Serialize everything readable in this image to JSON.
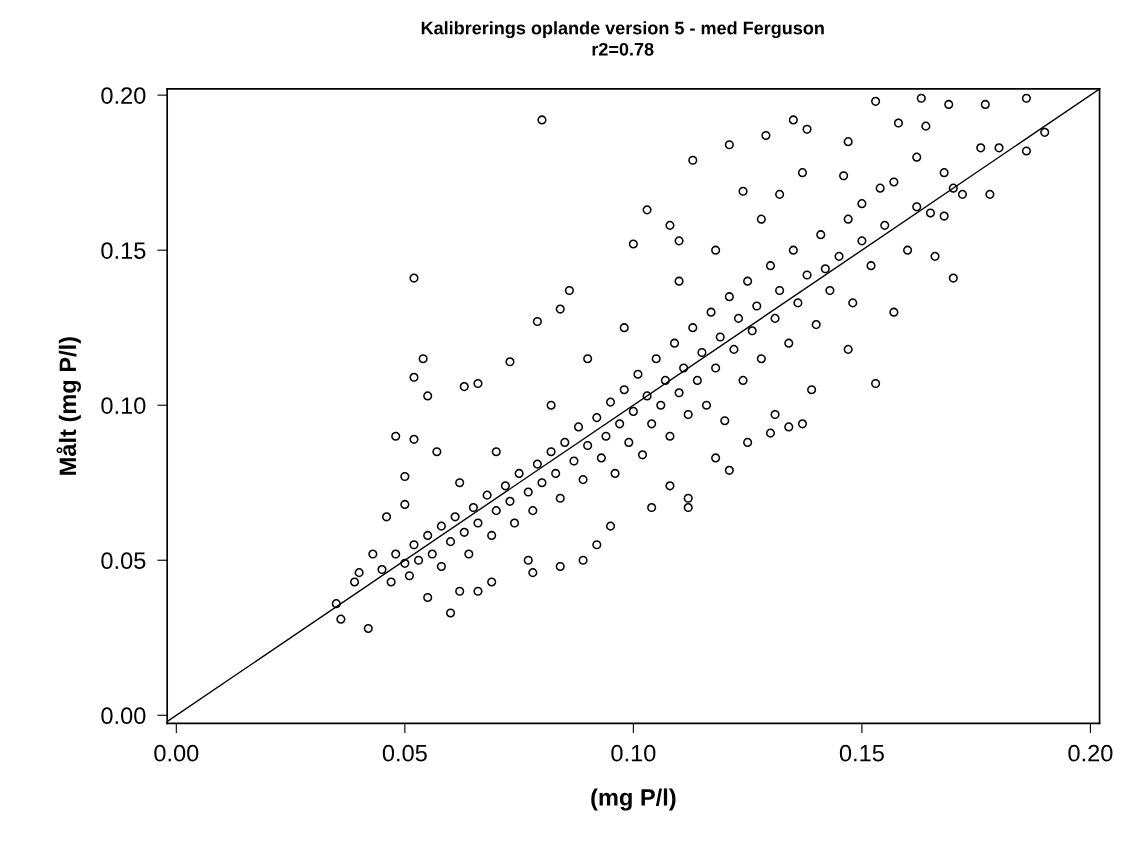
{
  "chart_data": {
    "type": "scatter",
    "title": "Kalibrerings oplande version 5 - med Ferguson",
    "subtitle": "r2=0.78",
    "xlabel": "(mg P/l)",
    "ylabel": "Målt (mg P/l)",
    "xlim": [
      -0.002,
      0.202
    ],
    "ylim": [
      -0.0026,
      0.202
    ],
    "xticks": [
      {
        "value": 0,
        "label": "0.00"
      },
      {
        "value": 0.05,
        "label": "0.05"
      },
      {
        "value": 0.1,
        "label": "0.10"
      },
      {
        "value": 0.15,
        "label": "0.15"
      },
      {
        "value": 0.2,
        "label": "0.20"
      }
    ],
    "yticks": [
      {
        "value": 0,
        "label": "0.00"
      },
      {
        "value": 0.05,
        "label": "0.05"
      },
      {
        "value": 0.1,
        "label": "0.10"
      },
      {
        "value": 0.15,
        "label": "0.15"
      },
      {
        "value": 0.2,
        "label": "0.20"
      }
    ],
    "grid": false,
    "legend": false,
    "series": [
      {
        "color": "#000000",
        "marker": "circle",
        "x": [
          0.08,
          0.052,
          0.054,
          0.052,
          0.055,
          0.063,
          0.066,
          0.073,
          0.086,
          0.079,
          0.1,
          0.084,
          0.153,
          0.163,
          0.169,
          0.177,
          0.186,
          0.19,
          0.186,
          0.18,
          0.178,
          0.17,
          0.166,
          0.153,
          0.139,
          0.147,
          0.157,
          0.113,
          0.121,
          0.135,
          0.129,
          0.103,
          0.108,
          0.11,
          0.137,
          0.158,
          0.164,
          0.176,
          0.168,
          0.172,
          0.162,
          0.168,
          0.142,
          0.15,
          0.138,
          0.147,
          0.146,
          0.154,
          0.124,
          0.132,
          0.137,
          0.134,
          0.13,
          0.131,
          0.121,
          0.118,
          0.112,
          0.112,
          0.104,
          0.108,
          0.125,
          0.042,
          0.036,
          0.035,
          0.04,
          0.039,
          0.043,
          0.06,
          0.048,
          0.052,
          0.05,
          0.046,
          0.05,
          0.057,
          0.078,
          0.084,
          0.089,
          0.092,
          0.095,
          0.069,
          0.066,
          0.055,
          0.062,
          0.077,
          0.045,
          0.047,
          0.048,
          0.05,
          0.051,
          0.052,
          0.053,
          0.055,
          0.056,
          0.058,
          0.058,
          0.06,
          0.061,
          0.063,
          0.064,
          0.065,
          0.066,
          0.068,
          0.069,
          0.07,
          0.072,
          0.073,
          0.074,
          0.075,
          0.077,
          0.078,
          0.079,
          0.08,
          0.082,
          0.083,
          0.084,
          0.085,
          0.087,
          0.088,
          0.089,
          0.09,
          0.092,
          0.093,
          0.094,
          0.095,
          0.096,
          0.097,
          0.098,
          0.099,
          0.1,
          0.101,
          0.102,
          0.103,
          0.104,
          0.105,
          0.106,
          0.107,
          0.108,
          0.109,
          0.11,
          0.111,
          0.112,
          0.113,
          0.114,
          0.115,
          0.116,
          0.117,
          0.118,
          0.119,
          0.12,
          0.121,
          0.122,
          0.123,
          0.124,
          0.125,
          0.126,
          0.127,
          0.128,
          0.13,
          0.131,
          0.132,
          0.134,
          0.135,
          0.136,
          0.138,
          0.14,
          0.141,
          0.143,
          0.145,
          0.147,
          0.148,
          0.15,
          0.152,
          0.155,
          0.157,
          0.16,
          0.162,
          0.165,
          0.17,
          0.128,
          0.118,
          0.11,
          0.098,
          0.09,
          0.082,
          0.07,
          0.062
        ],
        "values": [
          0.192,
          0.141,
          0.115,
          0.109,
          0.103,
          0.106,
          0.107,
          0.114,
          0.137,
          0.127,
          0.152,
          0.131,
          0.198,
          0.199,
          0.197,
          0.197,
          0.199,
          0.188,
          0.182,
          0.183,
          0.168,
          0.141,
          0.148,
          0.107,
          0.105,
          0.118,
          0.13,
          0.179,
          0.184,
          0.192,
          0.187,
          0.163,
          0.158,
          0.153,
          0.175,
          0.191,
          0.19,
          0.183,
          0.175,
          0.168,
          0.164,
          0.161,
          0.144,
          0.153,
          0.189,
          0.185,
          0.174,
          0.17,
          0.169,
          0.168,
          0.094,
          0.093,
          0.091,
          0.097,
          0.079,
          0.083,
          0.067,
          0.07,
          0.067,
          0.074,
          0.088,
          0.028,
          0.031,
          0.036,
          0.046,
          0.043,
          0.052,
          0.033,
          0.09,
          0.089,
          0.077,
          0.064,
          0.068,
          0.085,
          0.046,
          0.048,
          0.05,
          0.055,
          0.061,
          0.043,
          0.04,
          0.038,
          0.04,
          0.05,
          0.047,
          0.043,
          0.052,
          0.049,
          0.045,
          0.055,
          0.05,
          0.058,
          0.052,
          0.061,
          0.048,
          0.056,
          0.064,
          0.059,
          0.052,
          0.067,
          0.062,
          0.071,
          0.058,
          0.066,
          0.074,
          0.069,
          0.062,
          0.078,
          0.072,
          0.066,
          0.081,
          0.075,
          0.085,
          0.078,
          0.07,
          0.088,
          0.082,
          0.093,
          0.076,
          0.087,
          0.096,
          0.083,
          0.09,
          0.101,
          0.078,
          0.094,
          0.105,
          0.088,
          0.098,
          0.11,
          0.084,
          0.103,
          0.094,
          0.115,
          0.1,
          0.108,
          0.09,
          0.12,
          0.104,
          0.112,
          0.097,
          0.125,
          0.108,
          0.117,
          0.1,
          0.13,
          0.112,
          0.122,
          0.095,
          0.135,
          0.118,
          0.128,
          0.108,
          0.14,
          0.124,
          0.132,
          0.115,
          0.145,
          0.128,
          0.137,
          0.12,
          0.15,
          0.133,
          0.142,
          0.126,
          0.155,
          0.137,
          0.148,
          0.16,
          0.133,
          0.165,
          0.145,
          0.158,
          0.172,
          0.15,
          0.18,
          0.162,
          0.17,
          0.16,
          0.15,
          0.14,
          0.125,
          0.115,
          0.1,
          0.085,
          0.075
        ]
      },
      {
        "type": "line",
        "color": "#000000",
        "x": [
          -0.002,
          0.202
        ],
        "values": [
          -0.002,
          0.202
        ]
      }
    ]
  }
}
